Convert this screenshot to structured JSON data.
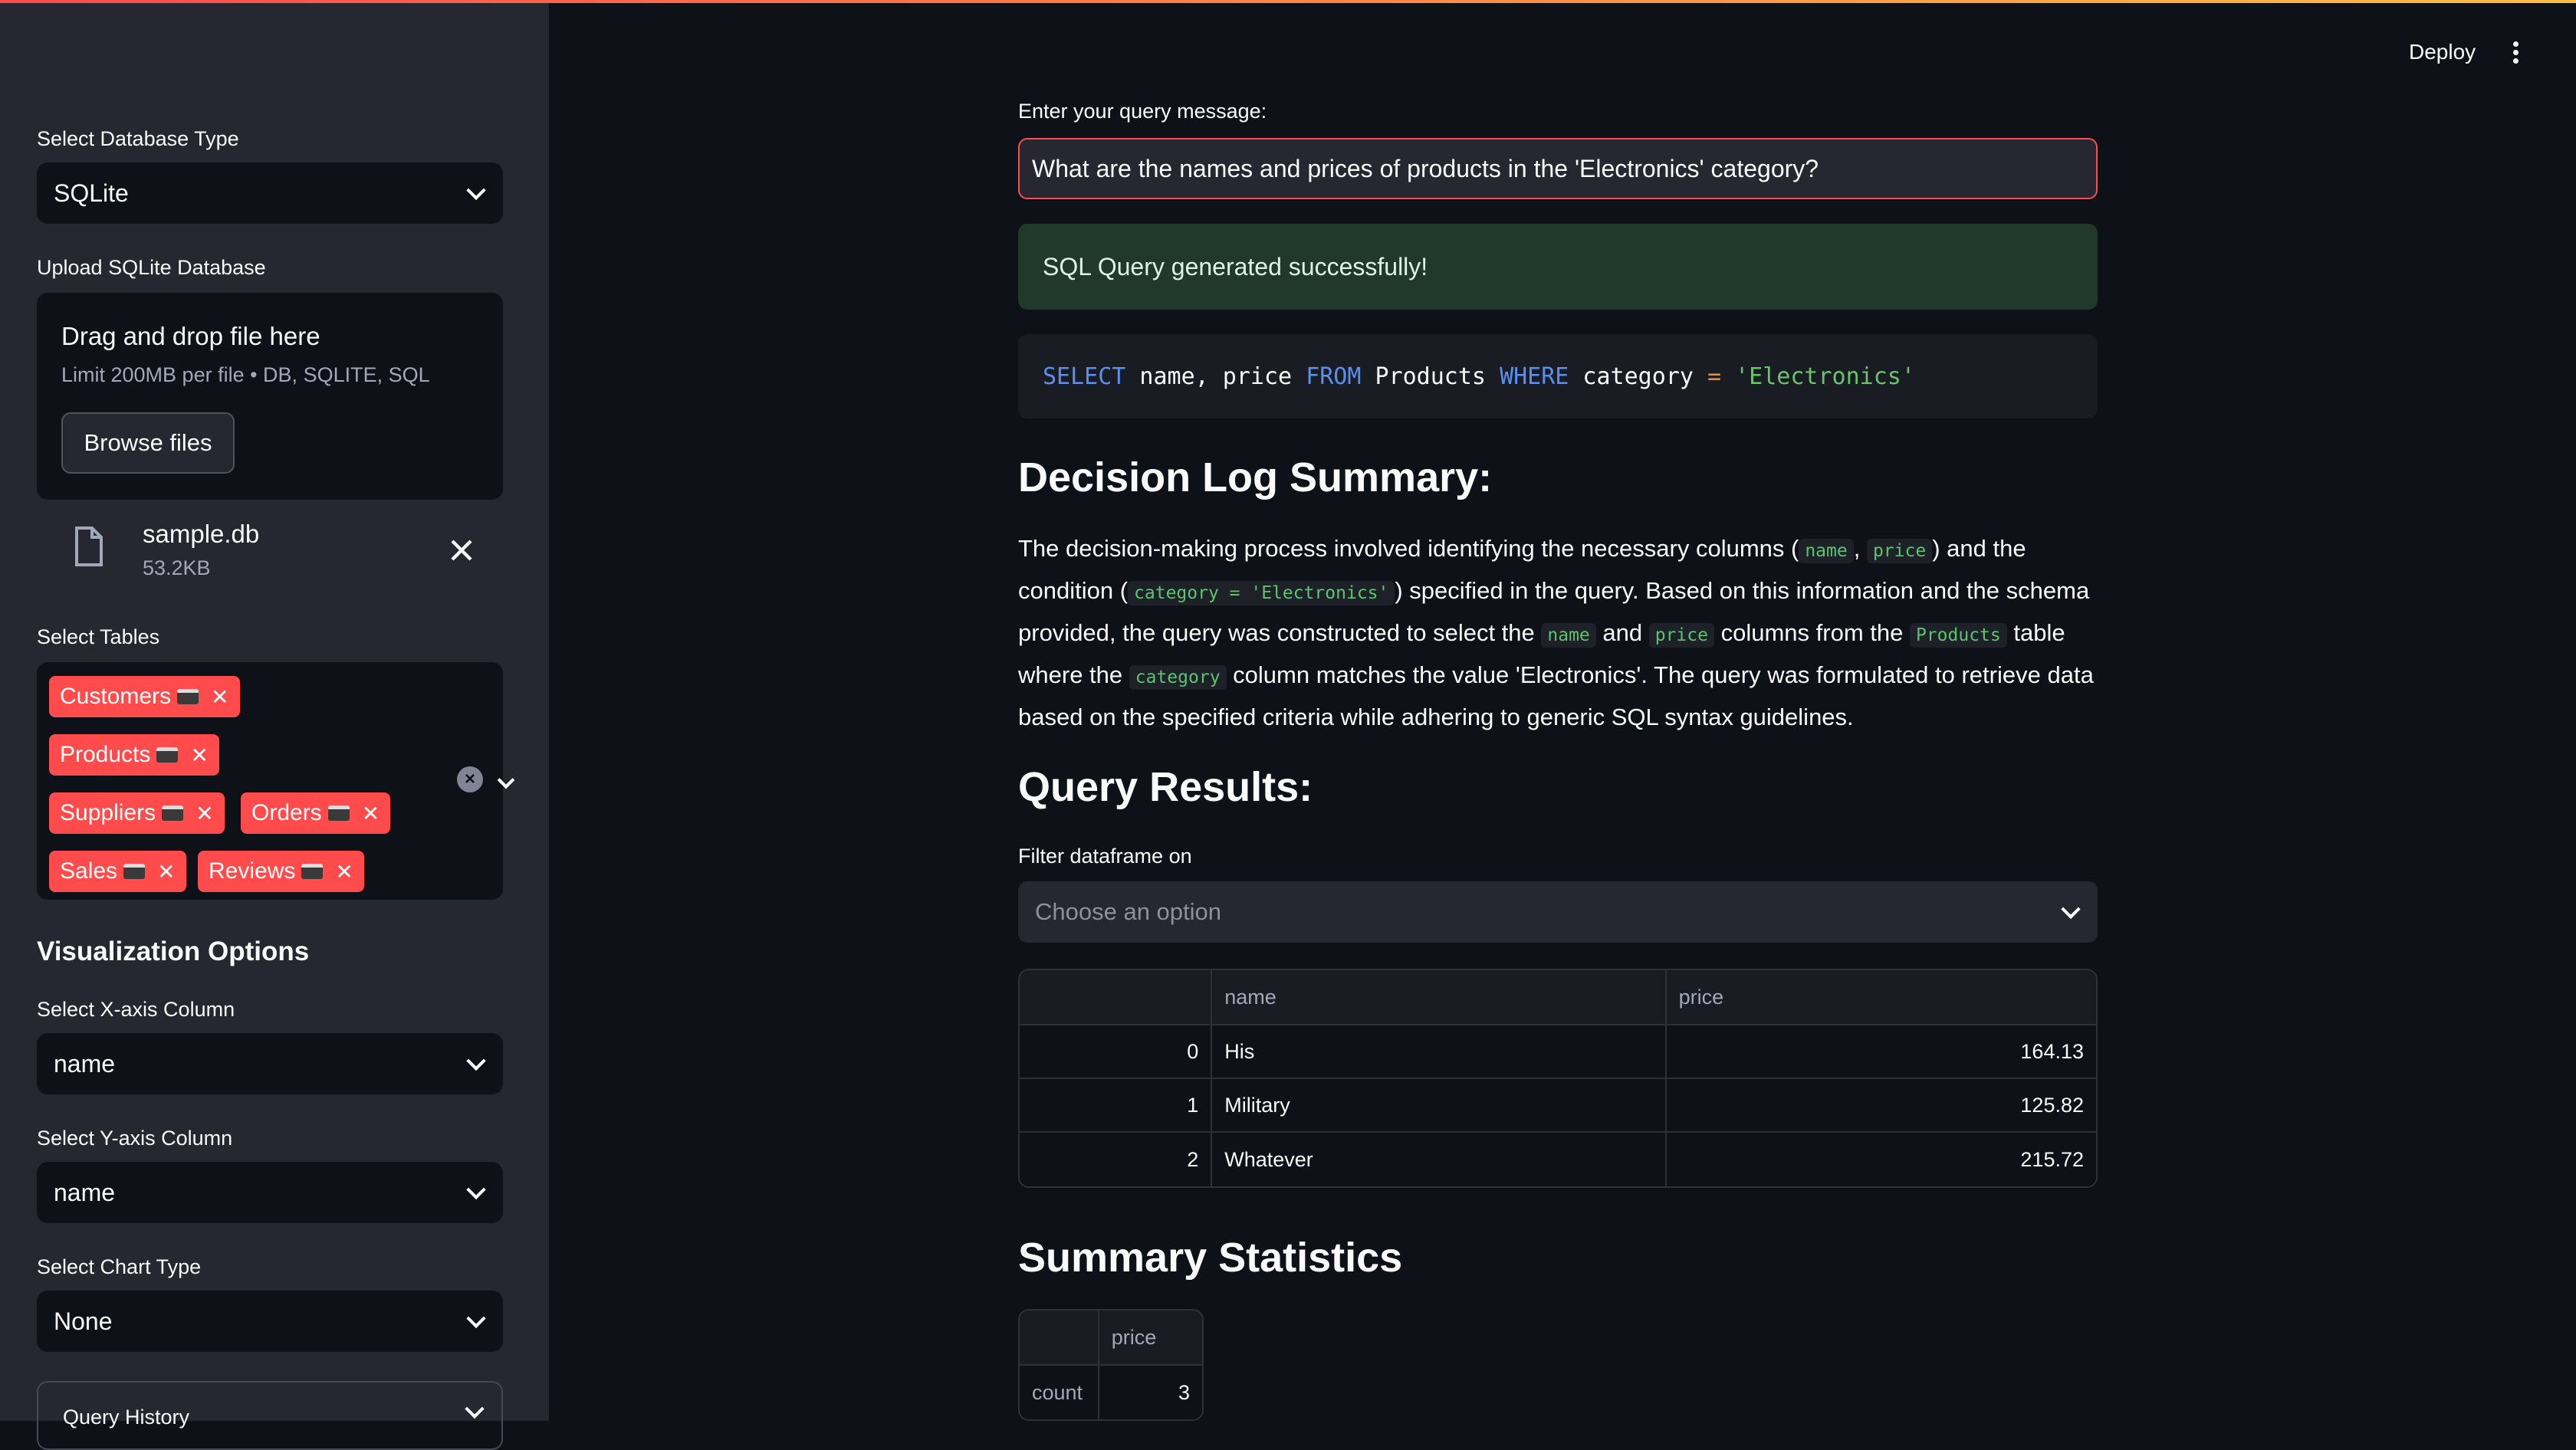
{
  "sidebar": {
    "db_type_label": "Select Database Type",
    "db_type_value": "SQLite",
    "upload_label": "Upload SQLite Database",
    "dropzone_title": "Drag and drop file here",
    "dropzone_limit": "Limit 200MB per file • DB, SQLITE, SQL",
    "browse_label": "Browse files",
    "file": {
      "name": "sample.db",
      "size": "53.2KB"
    },
    "tables_label": "Select Tables",
    "tables": [
      "Customers",
      "Products",
      "Suppliers",
      "Orders",
      "Sales",
      "Reviews"
    ],
    "viz_heading": "Visualization Options",
    "x_axis_label": "Select X-axis Column",
    "x_axis_value": "name",
    "y_axis_label": "Select Y-axis Column",
    "y_axis_value": "name",
    "chart_type_label": "Select Chart Type",
    "chart_type_value": "None",
    "history_label": "Query History"
  },
  "header": {
    "deploy_label": "Deploy"
  },
  "main": {
    "query_label": "Enter your query message:",
    "query_value": "What are the names and prices of products in the 'Electronics' category?",
    "success_message": "SQL Query generated successfully!",
    "sql": {
      "kw_select": "SELECT",
      "cols": " name, price ",
      "kw_from": "FROM",
      "table": " Products ",
      "kw_where": "WHERE",
      "col": " category ",
      "op": "=",
      "value": " 'Electronics'"
    },
    "decision_heading": "Decision Log Summary:",
    "decision": {
      "t1": "The decision-making process involved identifying the necessary columns (",
      "c1": "name",
      "t2": ", ",
      "c2": "price",
      "t3": ") and the condition (",
      "c3": "category = 'Electronics'",
      "t4": ") specified in the query. Based on this information and the schema provided, the query was constructed to select the ",
      "c4": "name",
      "t5": " and ",
      "c5": "price",
      "t6": " columns from the ",
      "c6": "Products",
      "t7": " table where the ",
      "c7": "category",
      "t8": " column matches the value 'Electronics'. The query was formulated to retrieve data based on the specified criteria while adhering to generic SQL syntax guidelines."
    },
    "results_heading": "Query Results:",
    "filter_label": "Filter dataframe on",
    "filter_placeholder": "Choose an option",
    "results_table": {
      "columns": [
        "",
        "name",
        "price"
      ],
      "rows": [
        [
          "0",
          "His",
          "164.13"
        ],
        [
          "1",
          "Military",
          "125.82"
        ],
        [
          "2",
          "Whatever",
          "215.72"
        ]
      ]
    },
    "stats_heading": "Summary Statistics",
    "stats_table": {
      "columns": [
        "",
        "price"
      ],
      "rows": [
        [
          "count",
          "3"
        ]
      ]
    }
  },
  "colors": {
    "accent": "#ff4b4b",
    "background": "#0e1117",
    "sidebar": "#262730",
    "success_bg": "#21392a"
  }
}
